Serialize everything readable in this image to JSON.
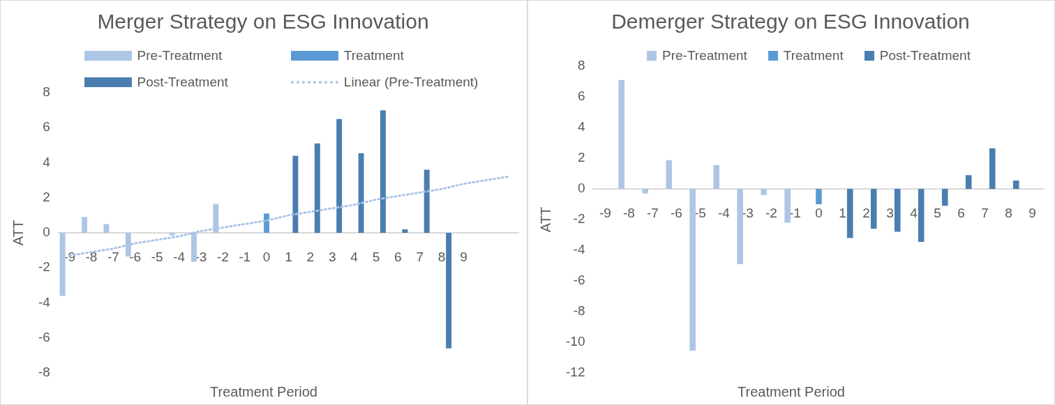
{
  "chart_data": [
    {
      "type": "bar",
      "title": "Merger Strategy on ESG Innovation",
      "xlabel": "Treatment Period",
      "ylabel": "ATT",
      "categories": [
        "-9",
        "-8",
        "-7",
        "-6",
        "-5",
        "-4",
        "-3",
        "-2",
        "-1",
        "0",
        "1",
        "2",
        "3",
        "4",
        "5",
        "6",
        "7",
        "8",
        "9",
        null,
        null
      ],
      "series": [
        {
          "name": "Pre-Treatment",
          "color": "#adc6e5",
          "values": [
            -3.6,
            0.9,
            0.5,
            -1.35,
            null,
            -0.15,
            -1.65,
            1.65,
            null,
            null,
            null,
            null,
            null,
            null,
            null,
            null,
            null,
            null,
            null,
            null,
            null
          ]
        },
        {
          "name": "Treatment",
          "color": "#5b9bd5",
          "values": [
            null,
            null,
            null,
            null,
            null,
            null,
            null,
            null,
            null,
            1.1,
            null,
            null,
            null,
            null,
            null,
            null,
            null,
            null,
            null,
            null,
            null
          ]
        },
        {
          "name": "Post-Treatment",
          "color": "#4a7eb0",
          "values": [
            null,
            null,
            null,
            null,
            null,
            null,
            null,
            null,
            null,
            null,
            4.4,
            5.1,
            6.5,
            4.55,
            7.0,
            0.2,
            3.6,
            -6.6,
            null,
            null,
            null
          ]
        },
        {
          "name": "Linear (Pre-Treatment)",
          "type": "line",
          "line_style": "dotted",
          "color": "#a9c4e6",
          "values": [
            -1.3,
            -1.1,
            -0.9,
            -0.6,
            -0.4,
            -0.2,
            0.1,
            0.3,
            0.5,
            0.7,
            1.0,
            1.2,
            1.4,
            1.6,
            1.9,
            2.1,
            2.3,
            2.5,
            2.8,
            3.0,
            3.2
          ]
        }
      ],
      "ylim": [
        -8,
        8
      ],
      "yticks": [
        -8,
        -6,
        -4,
        -2,
        0,
        2,
        4,
        6,
        8
      ],
      "grid": false,
      "legend": "top"
    },
    {
      "type": "bar",
      "title": "Demerger Strategy on ESG Innovation",
      "xlabel": "Treatment Period",
      "ylabel": "ATT",
      "categories": [
        "-9",
        "-8",
        "-7",
        "-6",
        "-5",
        "-4",
        "-3",
        "-2",
        "-1",
        "0",
        "1",
        "2",
        "3",
        "4",
        "5",
        "6",
        "7",
        "8",
        "9"
      ],
      "series": [
        {
          "name": "Pre-Treatment",
          "color": "#adc6e5",
          "values": [
            null,
            7.1,
            -0.3,
            1.87,
            -10.55,
            1.55,
            -4.9,
            -0.4,
            -2.2,
            null,
            null,
            null,
            null,
            null,
            null,
            null,
            null,
            null,
            null
          ]
        },
        {
          "name": "Treatment",
          "color": "#5b9bd5",
          "values": [
            null,
            null,
            null,
            null,
            null,
            null,
            null,
            null,
            null,
            -1.0,
            null,
            null,
            null,
            null,
            null,
            null,
            null,
            null,
            null
          ]
        },
        {
          "name": "Post-Treatment",
          "color": "#4a7eb0",
          "values": [
            null,
            null,
            null,
            null,
            null,
            null,
            null,
            null,
            null,
            null,
            -3.2,
            -2.6,
            -2.8,
            -3.45,
            -1.1,
            0.9,
            2.65,
            0.55,
            null
          ]
        }
      ],
      "ylim": [
        -12,
        8
      ],
      "yticks": [
        -12,
        -10,
        -8,
        -6,
        -4,
        -2,
        0,
        2,
        4,
        6,
        8
      ],
      "grid": false,
      "legend": "top"
    }
  ]
}
